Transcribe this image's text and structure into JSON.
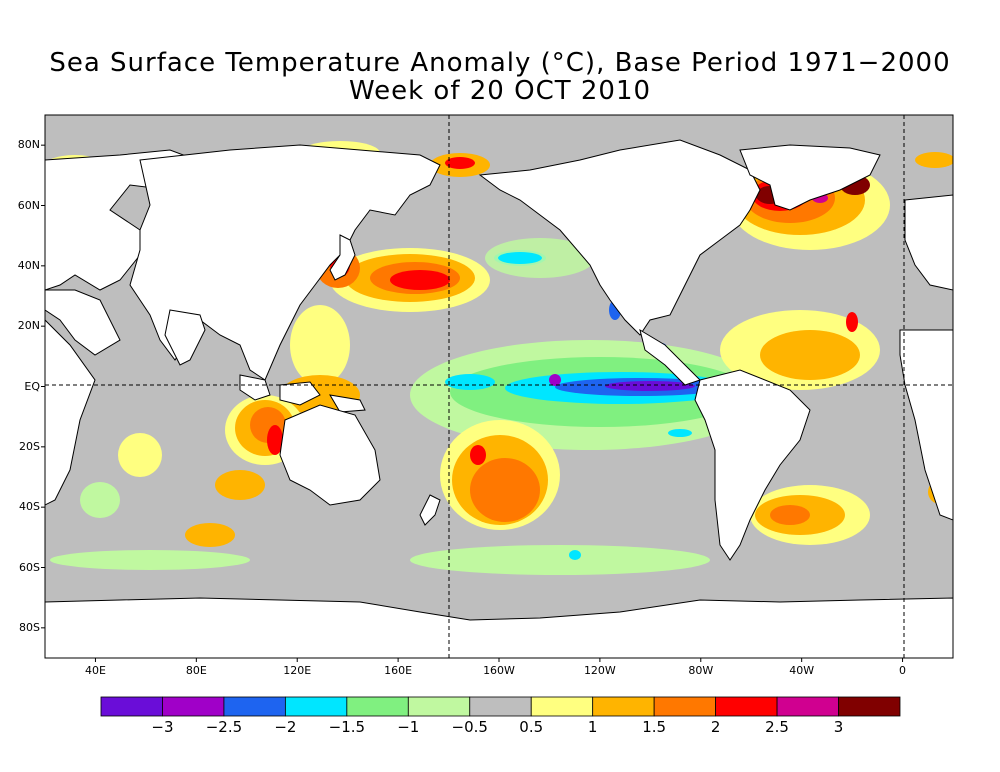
{
  "title": "Sea Surface Temperature Anomaly (°C), Base Period 1971−2000",
  "subtitle": "Week of 20 OCT 2010",
  "lat_labels": [
    {
      "text": "80N",
      "lat": 80
    },
    {
      "text": "60N",
      "lat": 60
    },
    {
      "text": "40N",
      "lat": 40
    },
    {
      "text": "20N",
      "lat": 20
    },
    {
      "text": "EQ",
      "lat": 0
    },
    {
      "text": "20S",
      "lat": -20
    },
    {
      "text": "40S",
      "lat": -40
    },
    {
      "text": "60S",
      "lat": -60
    },
    {
      "text": "80S",
      "lat": -80
    }
  ],
  "lon_labels": [
    {
      "text": "40E",
      "lon": 40
    },
    {
      "text": "80E",
      "lon": 80
    },
    {
      "text": "120E",
      "lon": 120
    },
    {
      "text": "160E",
      "lon": 160
    },
    {
      "text": "160W",
      "lon": 200
    },
    {
      "text": "120W",
      "lon": 240
    },
    {
      "text": "80W",
      "lon": 280
    },
    {
      "text": "40W",
      "lon": 320
    },
    {
      "text": "0",
      "lon": 360
    }
  ],
  "colorbar": {
    "colors": [
      "#6a0dd8",
      "#a000c8",
      "#1e64f0",
      "#00e6ff",
      "#80f080",
      "#c0f8a0",
      "#bebebe",
      "#ffff80",
      "#ffb400",
      "#ff7800",
      "#ff0000",
      "#d00090",
      "#800000"
    ],
    "labels": [
      "−3",
      "−2.5",
      "−2",
      "−1.5",
      "−1",
      "−0.5",
      "0.5",
      "1",
      "1.5",
      "2",
      "2.5",
      "3"
    ]
  }
}
